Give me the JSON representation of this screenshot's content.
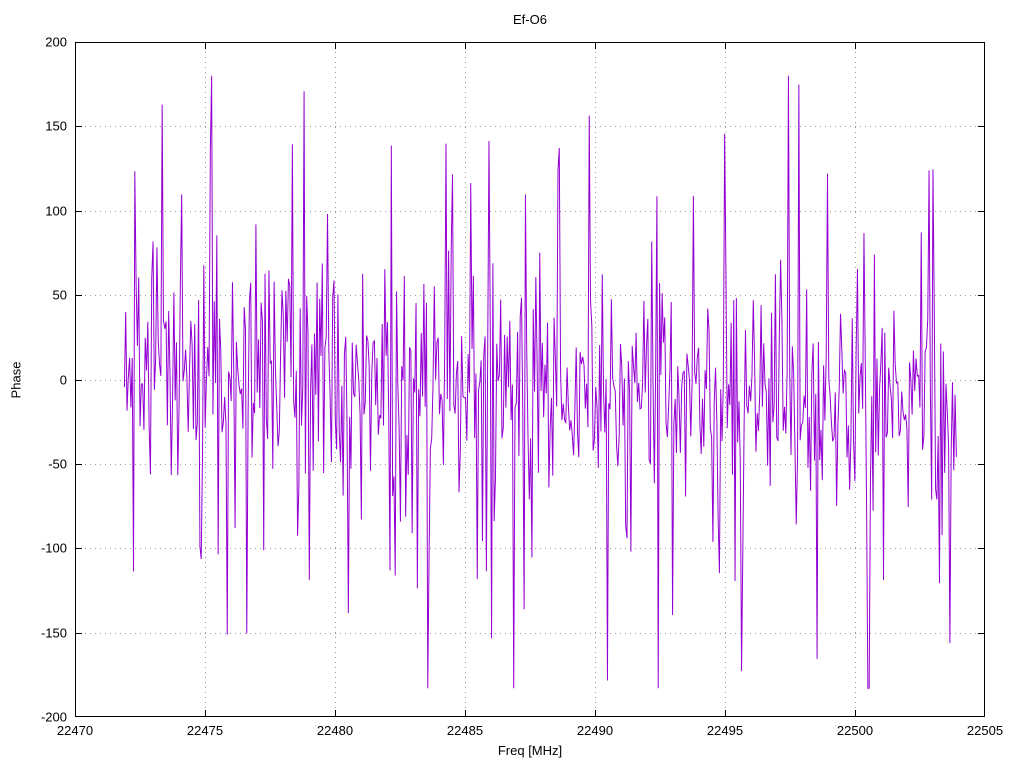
{
  "chart_data": {
    "type": "line",
    "title": "Ef-O6",
    "xlabel": "Freq [MHz]",
    "ylabel": "Phase",
    "xlim": [
      22470,
      22505
    ],
    "ylim": [
      -200,
      200
    ],
    "x_ticks": [
      22470,
      22475,
      22480,
      22485,
      22490,
      22495,
      22500,
      22505
    ],
    "y_ticks": [
      -200,
      -150,
      -100,
      -50,
      0,
      50,
      100,
      150,
      200
    ],
    "grid": "dotted",
    "grid_color": "#9a9a9a",
    "border_color": "#000000",
    "legend": "none",
    "series": [
      {
        "name": "phase",
        "color": "#9400d3",
        "x_start": 22471.9,
        "x_end": 22503.9,
        "n_points": 640,
        "seed": 1234567,
        "noise": {
          "sigma": 60,
          "spike_prob": 0.12,
          "spike_min": 55,
          "spike_max": 170,
          "bias_start": 10,
          "bias_end": -20,
          "clip_min": -183,
          "clip_max": 180
        }
      }
    ]
  },
  "layout_note": "phase noise scatter, values mostly within +/-100 with frequent spikes to +/-150..180 across full band"
}
